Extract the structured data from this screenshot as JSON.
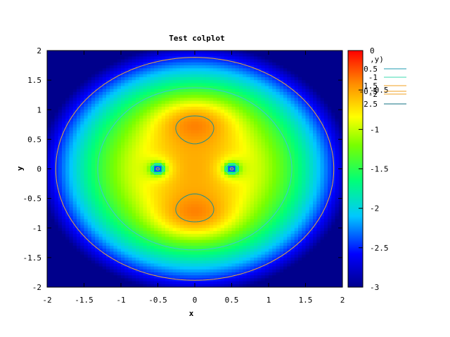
{
  "chart_data": {
    "type": "heatmap",
    "title": "Test colplot",
    "xlabel": "x",
    "ylabel": "y",
    "xlim": [
      -2,
      2
    ],
    "ylim": [
      -2,
      2
    ],
    "x_ticks": [
      "-2",
      "-1.5",
      "-1",
      "-0.5",
      "0",
      "0.5",
      "1",
      "1.5",
      "2"
    ],
    "y_ticks": [
      "2",
      "1.5",
      "1",
      "0.5",
      "0",
      "-0.5",
      "-1",
      "-1.5",
      "-2"
    ],
    "colorbar": {
      "range": [
        -3,
        0
      ],
      "ticks": [
        "0",
        "-0.5",
        "-1",
        "-1.5",
        "-2",
        "-2.5",
        "-3"
      ],
      "colormap": [
        "#00008c",
        "#0000ff",
        "#00c8ff",
        "#00ff78",
        "#78ff00",
        "#ffff00",
        "#ff8c00",
        "#ff0000"
      ]
    },
    "contour_legend": {
      "header": ",y)",
      "entries": [
        {
          "label": "0.5",
          "color": "#1f9bb0"
        },
        {
          "label": "-1",
          "color": "#3fd9b0"
        },
        {
          "label": "1.5",
          "color": "#f0a020"
        },
        {
          "label": "-2",
          "color": "#f0a020"
        },
        {
          "label": "-0.5",
          "color": "#f0a020"
        },
        {
          "label": "2.5",
          "color": "#107080"
        }
      ]
    },
    "contour_levels": [
      -0.5,
      -1.5,
      -2.5
    ],
    "contour_colors": [
      "#1a8f8f",
      "#3cc8d8",
      "#e8a838"
    ],
    "surface": "z = max(-3, min(0, -0.25 - 0.6*r^2/4 ... )) radially decreasing with two dips at (±0.5, 0) and two peaks at (0, ±0.85)"
  }
}
